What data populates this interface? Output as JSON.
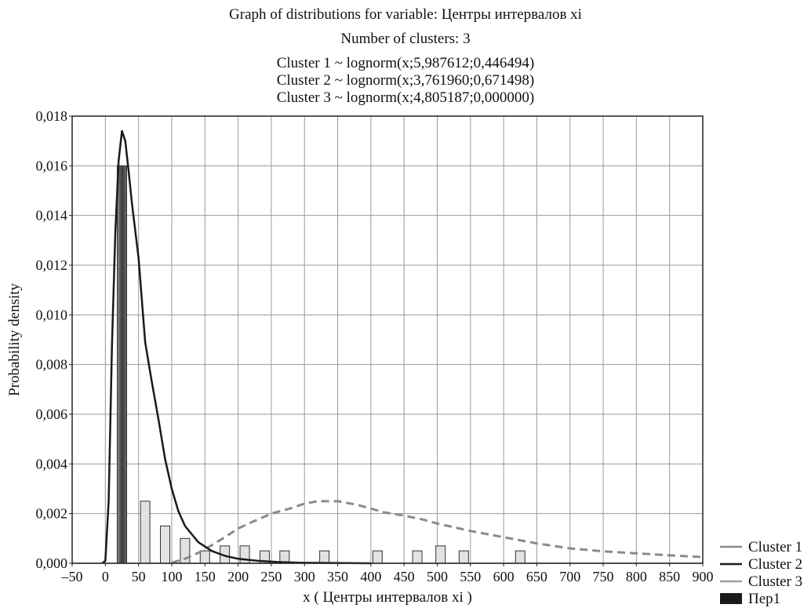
{
  "chart_data": {
    "type": "bar",
    "title": "Graph of distributions for variable: Центры интервалов xi",
    "subtitle": "Number of clusters: 3",
    "annotations": [
      "Cluster 1 ~ lognorm(x;5,987612;0,446494)",
      "Cluster 2 ~ lognorm(x;3,761960;0,671498)",
      "Cluster 3 ~ lognorm(x;4,805187;0,000000)"
    ],
    "xlabel": "x ( Центры интервалов xi )",
    "ylabel": "Probability density",
    "xlim": [
      -50,
      900
    ],
    "ylim": [
      0,
      0.018
    ],
    "grid": true,
    "x_ticks": [
      "–50",
      "0",
      "50",
      "100",
      "150",
      "200",
      "250",
      "300",
      "350",
      "400",
      "450",
      "500",
      "550",
      "600",
      "650",
      "700",
      "750",
      "800",
      "850",
      "900"
    ],
    "y_ticks": [
      "0,000",
      "0,002",
      "0,004",
      "0,006",
      "0,008",
      "0,010",
      "0,012",
      "0,014",
      "0,016",
      "0,018"
    ],
    "bars": {
      "name": "Пер1",
      "x": [
        25,
        60,
        90,
        120,
        150,
        180,
        210,
        240,
        270,
        330,
        410,
        470,
        505,
        540,
        625
      ],
      "values": [
        0.016,
        0.0025,
        0.0015,
        0.001,
        0.0005,
        0.0007,
        0.0007,
        0.0005,
        0.0005,
        0.0005,
        0.0005,
        0.0005,
        0.0007,
        0.0005,
        0.0005
      ],
      "width": 12
    },
    "series": [
      {
        "name": "Cluster 1",
        "style": "dashed",
        "color": "#8a8a8a",
        "x": [
          100,
          120,
          140,
          160,
          180,
          200,
          220,
          250,
          280,
          300,
          320,
          350,
          380,
          400,
          420,
          450,
          480,
          500,
          550,
          600,
          650,
          700,
          750,
          800,
          850,
          900
        ],
        "values": [
          2e-05,
          0.00018,
          0.00042,
          0.00072,
          0.00105,
          0.0014,
          0.00165,
          0.002,
          0.00222,
          0.0024,
          0.0025,
          0.0025,
          0.00235,
          0.0022,
          0.00205,
          0.00192,
          0.00175,
          0.0016,
          0.0013,
          0.00105,
          0.0008,
          0.0006,
          0.00048,
          0.0004,
          0.00032,
          0.00025
        ]
      },
      {
        "name": "Cluster 2",
        "style": "solid",
        "color": "#1a1a1a",
        "x": [
          -5,
          0,
          5,
          10,
          15,
          20,
          25,
          30,
          35,
          40,
          50,
          60,
          70,
          80,
          90,
          100,
          110,
          120,
          140,
          160,
          180,
          200,
          230,
          260,
          300,
          350,
          400
        ],
        "values": [
          0,
          0.0001,
          0.0025,
          0.0088,
          0.0133,
          0.0162,
          0.0174,
          0.017,
          0.0158,
          0.0145,
          0.0123,
          0.0089,
          0.0073,
          0.0058,
          0.0042,
          0.003,
          0.0021,
          0.0015,
          0.00085,
          0.0005,
          0.0003,
          0.00018,
          0.0001,
          5e-05,
          2e-05,
          1e-05,
          0
        ]
      },
      {
        "name": "Cluster 3",
        "style": "solid",
        "color": "#a0a0a0",
        "x": [
          -50,
          900
        ],
        "values": [
          0,
          0
        ]
      }
    ],
    "legend": {
      "placement": "bottom-right",
      "entries": [
        {
          "label": "Cluster 1",
          "color": "#8a8a8a",
          "kind": "line"
        },
        {
          "label": "Cluster 2",
          "color": "#1a1a1a",
          "kind": "line"
        },
        {
          "label": "Cluster 3",
          "color": "#a0a0a0",
          "kind": "line"
        },
        {
          "label": "Пер1",
          "color": "#1a1a1a",
          "kind": "box"
        }
      ]
    }
  }
}
